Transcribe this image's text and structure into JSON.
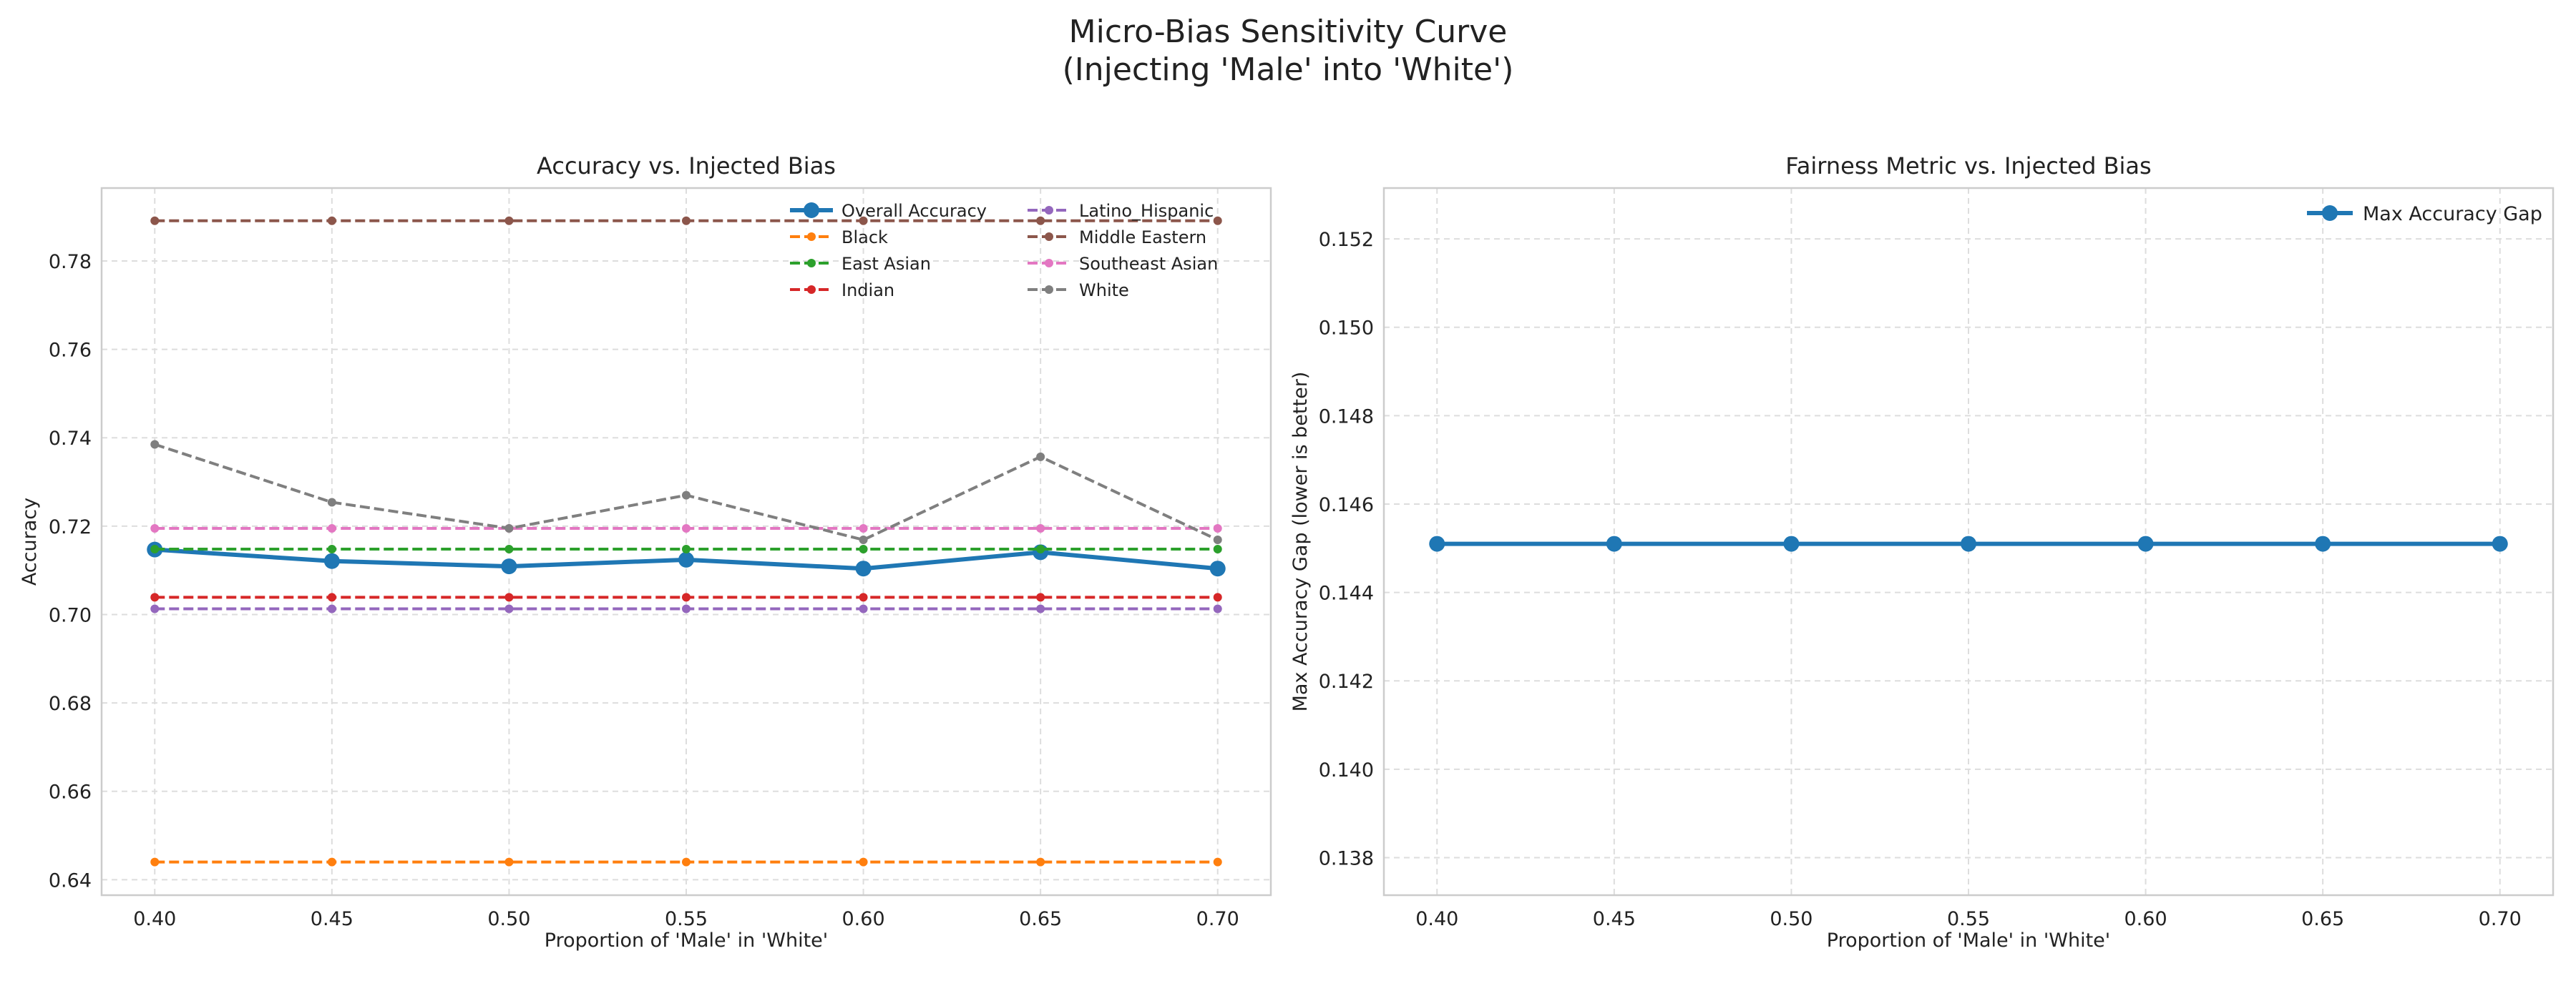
{
  "suptitle": [
    "Micro-Bias Sensitivity Curve",
    "(Injecting 'Male' into 'White')"
  ],
  "chart_data": [
    {
      "type": "line",
      "title": "Accuracy vs. Injected Bias",
      "xlabel": "Proportion of 'Male' in 'White'",
      "ylabel": "Accuracy",
      "x": [
        0.4,
        0.45,
        0.5,
        0.55,
        0.6,
        0.65,
        0.7
      ],
      "x_ticks": [
        "0.40",
        "0.45",
        "0.50",
        "0.55",
        "0.60",
        "0.65",
        "0.70"
      ],
      "xlim": [
        0.385,
        0.715
      ],
      "ylim": [
        0.6365,
        0.7965
      ],
      "y_ticks": [
        "0.64",
        "0.66",
        "0.68",
        "0.70",
        "0.72",
        "0.74",
        "0.76",
        "0.78"
      ],
      "grid": true,
      "legend_position": "upper right, 2 columns",
      "series": [
        {
          "name": "Overall Accuracy",
          "color": "#1f77b4",
          "style": "solid",
          "values": [
            0.7147,
            0.7121,
            0.7109,
            0.7124,
            0.7104,
            0.7141,
            0.7104
          ]
        },
        {
          "name": "Black",
          "color": "#ff7f0e",
          "style": "dashed",
          "values": [
            0.644,
            0.644,
            0.644,
            0.644,
            0.644,
            0.644,
            0.644
          ]
        },
        {
          "name": "East Asian",
          "color": "#2ca02c",
          "style": "dashed",
          "values": [
            0.7148,
            0.7148,
            0.7148,
            0.7148,
            0.7148,
            0.7148,
            0.7148
          ]
        },
        {
          "name": "Indian",
          "color": "#d62728",
          "style": "dashed",
          "values": [
            0.7039,
            0.7039,
            0.7039,
            0.7039,
            0.7039,
            0.7039,
            0.7039
          ]
        },
        {
          "name": "Latino_Hispanic",
          "color": "#9467bd",
          "style": "dashed",
          "values": [
            0.7013,
            0.7013,
            0.7013,
            0.7013,
            0.7013,
            0.7013,
            0.7013
          ]
        },
        {
          "name": "Middle Eastern",
          "color": "#8c564b",
          "style": "dashed",
          "values": [
            0.7891,
            0.7891,
            0.7891,
            0.7891,
            0.7891,
            0.7891,
            0.7891
          ]
        },
        {
          "name": "Southeast Asian",
          "color": "#e377c2",
          "style": "dashed",
          "values": [
            0.7195,
            0.7195,
            0.7195,
            0.7195,
            0.7195,
            0.7195,
            0.7195
          ]
        },
        {
          "name": "White",
          "color": "#7f7f7f",
          "style": "dashed",
          "values": [
            0.7385,
            0.7254,
            0.7195,
            0.727,
            0.7169,
            0.7357,
            0.7169
          ]
        }
      ]
    },
    {
      "type": "line",
      "title": "Fairness Metric vs. Injected Bias",
      "xlabel": "Proportion of 'Male' in 'White'",
      "ylabel": "Max Accuracy Gap (lower is better)",
      "x": [
        0.4,
        0.45,
        0.5,
        0.55,
        0.6,
        0.65,
        0.7
      ],
      "x_ticks": [
        "0.40",
        "0.45",
        "0.50",
        "0.55",
        "0.60",
        "0.65",
        "0.70"
      ],
      "xlim": [
        0.385,
        0.715
      ],
      "ylim": [
        0.13715,
        0.15315
      ],
      "y_ticks": [
        "0.138",
        "0.140",
        "0.142",
        "0.144",
        "0.146",
        "0.148",
        "0.150",
        "0.152"
      ],
      "grid": true,
      "legend_position": "upper right",
      "series": [
        {
          "name": "Max Accuracy Gap",
          "color": "#1f77b4",
          "style": "solid",
          "values": [
            0.1451,
            0.1451,
            0.1451,
            0.1451,
            0.1451,
            0.1451,
            0.1451
          ]
        }
      ]
    }
  ]
}
